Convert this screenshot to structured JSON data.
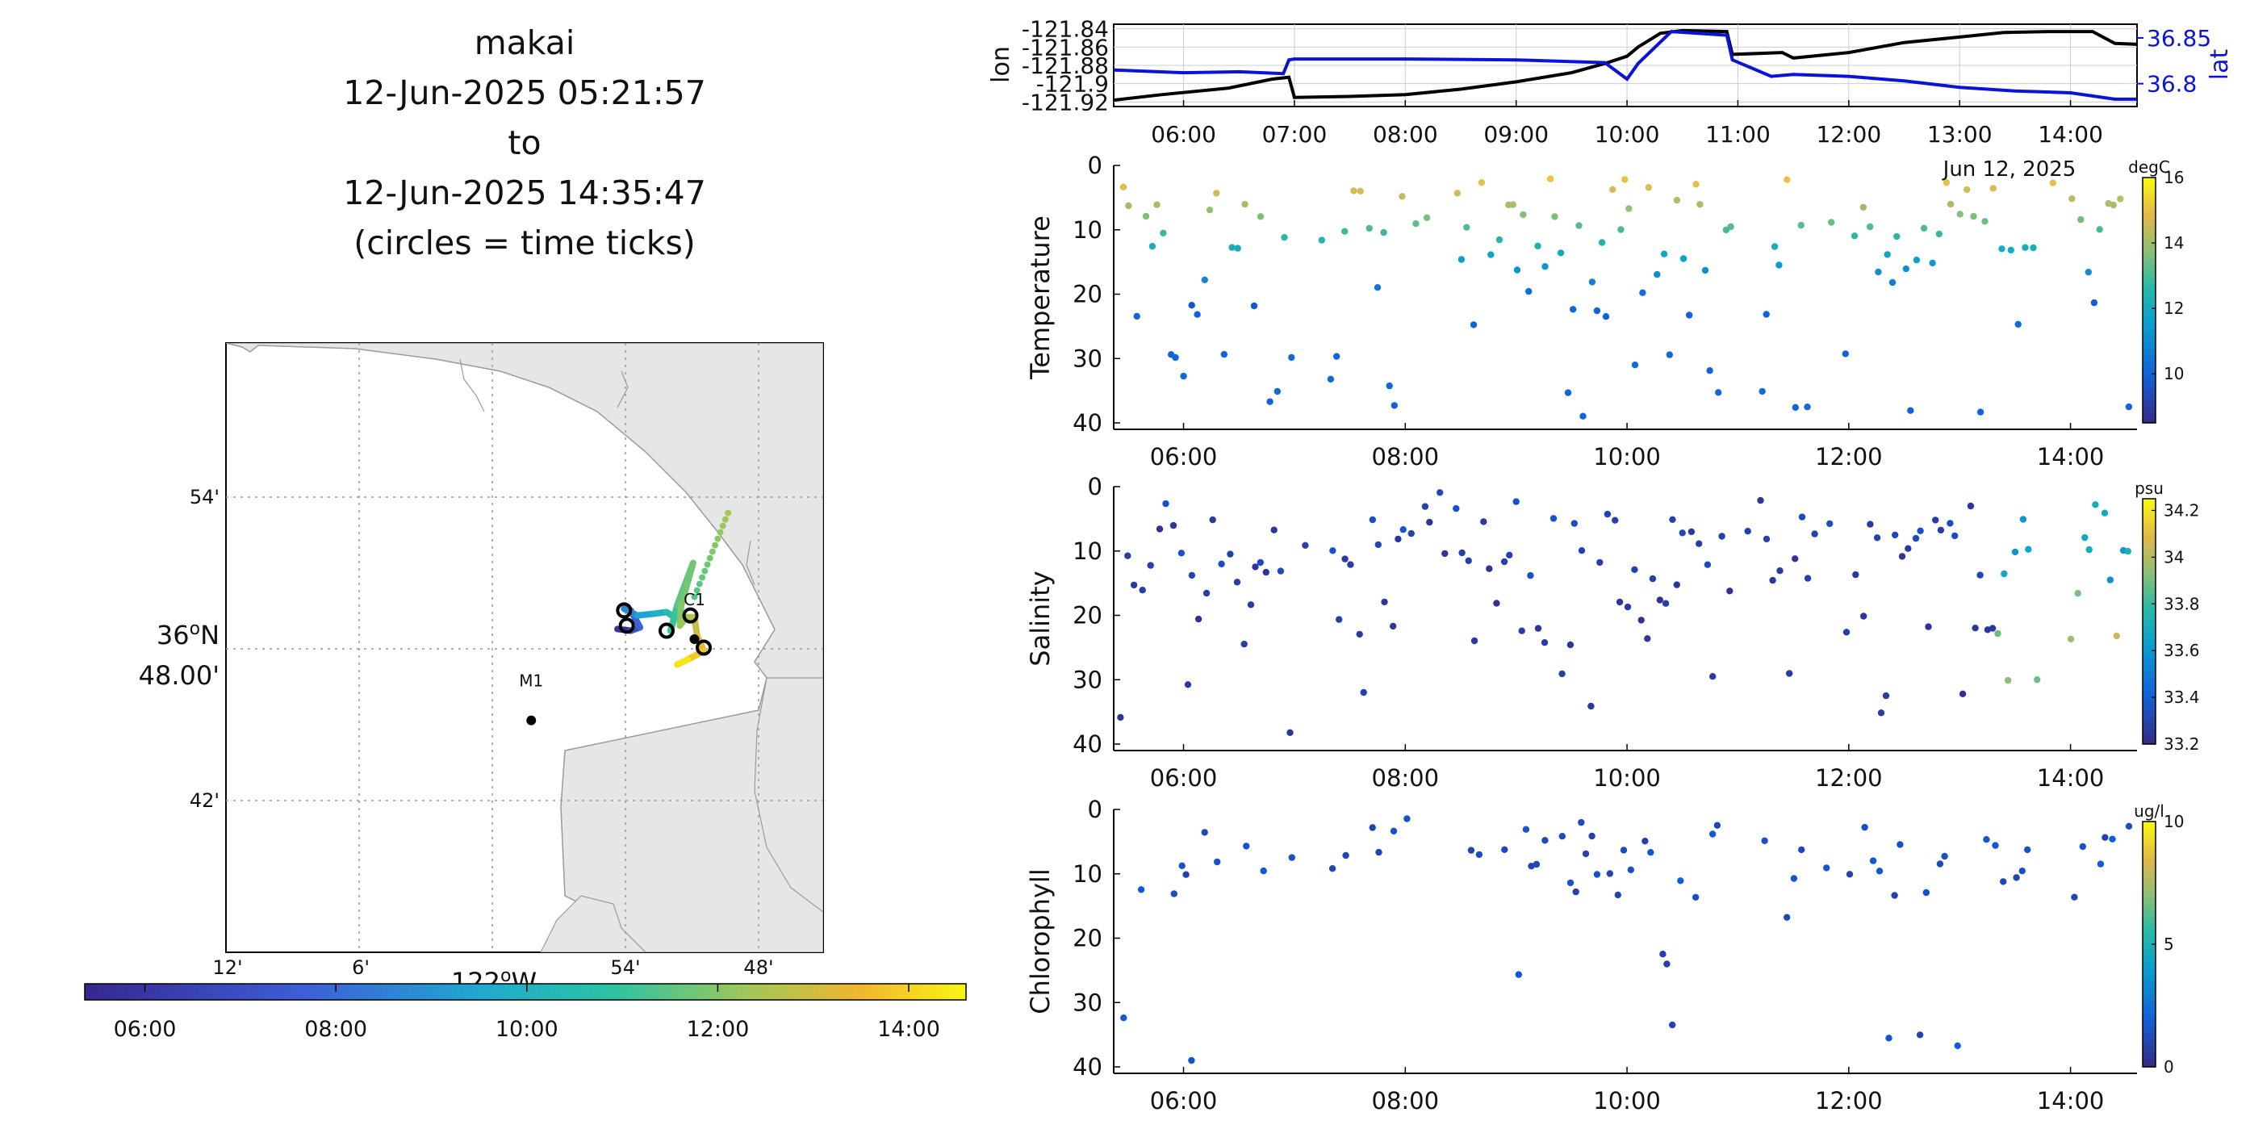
{
  "header": {
    "lines": [
      "makai",
      "12-Jun-2025 05:21:57",
      "to",
      "12-Jun-2025 14:35:47",
      "(circles = time ticks)"
    ]
  },
  "colors": {
    "lat_line": "#0a14d8",
    "lon_line": "#000000",
    "land": "#e6e6e6",
    "coast": "#a0a0a0",
    "grid": "#bbbbbb",
    "viridis": [
      "#440154",
      "#3b518b",
      "#21908c",
      "#5cc863",
      "#fde725"
    ],
    "parula": [
      "#352a87",
      "#0f5cdd",
      "#1481d6",
      "#06a4ca",
      "#2eb7a4",
      "#87bf77",
      "#d1bb59",
      "#fec832",
      "#f9fb0e"
    ]
  },
  "time_axis_ticks": [
    "06:00",
    "07:00",
    "08:00",
    "09:00",
    "10:00",
    "11:00",
    "12:00",
    "13:00",
    "14:00"
  ],
  "time_axis_ticks_panels": [
    "06:00",
    "08:00",
    "10:00",
    "12:00",
    "14:00"
  ],
  "date_label": "Jun 12, 2025",
  "chart_data": [
    {
      "id": "map",
      "type": "scatter",
      "description_units": "longitude minutes W of 122, latitude minutes N of 36",
      "x_ticks": [
        "12'",
        "6'",
        "54'",
        "48'"
      ],
      "x_axis_label": "122°W",
      "y_ticks": [
        "54'",
        "42'"
      ],
      "y_axis_label_line1": "36°N",
      "y_axis_label_line2": "48.00'",
      "markers": [
        {
          "label": "M1",
          "lon": -121.97,
          "lat": 36.747
        },
        {
          "label": "C1",
          "lon": -121.847,
          "lat": 36.795
        }
      ],
      "track": {
        "points": [
          {
            "t": 5.37,
            "lon": -121.905,
            "lat": 36.801
          },
          {
            "t": 6.0,
            "lon": -121.895,
            "lat": 36.8
          },
          {
            "t": 6.9,
            "lon": -121.888,
            "lat": 36.802
          },
          {
            "t": 7.0,
            "lon": -121.895,
            "lat": 36.812
          },
          {
            "t": 7.5,
            "lon": -121.9,
            "lat": 36.813
          },
          {
            "t": 8.0,
            "lon": -121.89,
            "lat": 36.809
          },
          {
            "t": 8.6,
            "lon": -121.878,
            "lat": 36.81
          },
          {
            "t": 9.2,
            "lon": -121.868,
            "lat": 36.811
          },
          {
            "t": 9.8,
            "lon": -121.862,
            "lat": 36.808
          },
          {
            "t": 10.0,
            "lon": -121.865,
            "lat": 36.8
          },
          {
            "t": 10.3,
            "lon": -121.86,
            "lat": 36.815
          },
          {
            "t": 10.9,
            "lon": -121.848,
            "lat": 36.84
          },
          {
            "t": 11.0,
            "lon": -121.857,
            "lat": 36.815
          },
          {
            "t": 11.4,
            "lon": -121.858,
            "lat": 36.803
          },
          {
            "t": 11.6,
            "lon": -121.853,
            "lat": 36.808
          },
          {
            "t": 12.0,
            "lon": -121.847,
            "lat": 36.808
          },
          {
            "t": 12.6,
            "lon": -121.845,
            "lat": 36.797
          },
          {
            "t": 13.2,
            "lon": -121.84,
            "lat": 36.788
          },
          {
            "t": 13.8,
            "lon": -121.852,
            "lat": 36.783
          },
          {
            "t": 14.6,
            "lon": -121.86,
            "lat": 36.78
          }
        ],
        "tick_circles": [
          {
            "lon": -121.9,
            "lat": 36.812
          },
          {
            "lon": -121.898,
            "lat": 36.803
          },
          {
            "lon": -121.868,
            "lat": 36.8
          },
          {
            "lon": -121.85,
            "lat": 36.809
          },
          {
            "lon": -121.84,
            "lat": 36.79
          }
        ]
      }
    },
    {
      "id": "lonlat",
      "type": "line",
      "ylabel_left": "lon",
      "ylabel_right": "lat",
      "y_ticks_left": [
        "-121.84",
        "-121.86",
        "-121.88",
        "-121.9",
        "-121.92"
      ],
      "y_ticks_right": [
        "36.85",
        "36.8"
      ],
      "ylim_left": [
        -121.925,
        -121.835
      ],
      "ylim_right": [
        36.775,
        36.865
      ],
      "xlim": [
        5.37,
        14.6
      ],
      "series": [
        {
          "name": "lon",
          "color": "#000000",
          "x": [
            5.37,
            5.8,
            6.4,
            6.8,
            6.95,
            7.0,
            7.5,
            8.0,
            8.5,
            9.0,
            9.5,
            9.8,
            10.0,
            10.1,
            10.3,
            10.5,
            10.9,
            10.95,
            11.4,
            11.5,
            12.0,
            12.5,
            13.0,
            13.4,
            13.8,
            14.2,
            14.4,
            14.6
          ],
          "y": [
            -121.918,
            -121.912,
            -121.905,
            -121.895,
            -121.893,
            -121.915,
            -121.914,
            -121.912,
            -121.906,
            -121.898,
            -121.888,
            -121.878,
            -121.87,
            -121.86,
            -121.845,
            -121.842,
            -121.843,
            -121.868,
            -121.866,
            -121.872,
            -121.866,
            -121.855,
            -121.849,
            -121.844,
            -121.843,
            -121.843,
            -121.856,
            -121.857
          ]
        },
        {
          "name": "lat",
          "color": "#0a14d8",
          "x": [
            5.37,
            6.0,
            6.5,
            6.9,
            6.95,
            7.0,
            8.0,
            9.0,
            9.8,
            10.0,
            10.1,
            10.4,
            10.9,
            10.95,
            11.3,
            11.5,
            12.0,
            12.5,
            13.0,
            13.5,
            14.0,
            14.4,
            14.6
          ],
          "y": [
            36.815,
            36.812,
            36.813,
            36.811,
            36.826,
            36.827,
            36.827,
            36.826,
            36.823,
            36.805,
            36.822,
            36.857,
            36.853,
            36.826,
            36.808,
            36.81,
            36.808,
            36.803,
            36.796,
            36.792,
            36.79,
            36.783,
            36.783
          ]
        }
      ]
    },
    {
      "id": "temperature",
      "type": "scatter",
      "ylabel": "Temperature",
      "unit": "degC",
      "ylim": [
        41,
        0
      ],
      "y_ticks": [
        "0",
        "10",
        "20",
        "30",
        "40"
      ],
      "clim": [
        8.5,
        16
      ],
      "cbar_ticks": [
        "16",
        "14",
        "12",
        "10"
      ],
      "xlim": [
        5.37,
        14.6
      ],
      "seed": 11,
      "profile": "temperature"
    },
    {
      "id": "salinity",
      "type": "scatter",
      "ylabel": "Salinity",
      "unit": "psu",
      "ylim": [
        41,
        0
      ],
      "y_ticks": [
        "0",
        "10",
        "20",
        "30",
        "40"
      ],
      "clim": [
        33.2,
        34.25
      ],
      "cbar_ticks": [
        "34.2",
        "34",
        "33.8",
        "33.6",
        "33.4",
        "33.2"
      ],
      "xlim": [
        5.37,
        14.6
      ],
      "seed": 23,
      "profile": "salinity"
    },
    {
      "id": "chlorophyll",
      "type": "scatter",
      "ylabel": "Chlorophyll",
      "unit": "ug/l",
      "ylim": [
        41,
        0
      ],
      "y_ticks": [
        "0",
        "10",
        "20",
        "30",
        "40"
      ],
      "clim": [
        0,
        10
      ],
      "cbar_ticks": [
        "10",
        "5",
        "0"
      ],
      "xlim": [
        5.37,
        14.6
      ],
      "seed": 37,
      "profile": "chlorophyll"
    }
  ],
  "map_colorbar": {
    "ticks": [
      "06:00",
      "08:00",
      "10:00",
      "12:00",
      "14:00"
    ],
    "tmin": 5.37,
    "tmax": 14.6
  }
}
